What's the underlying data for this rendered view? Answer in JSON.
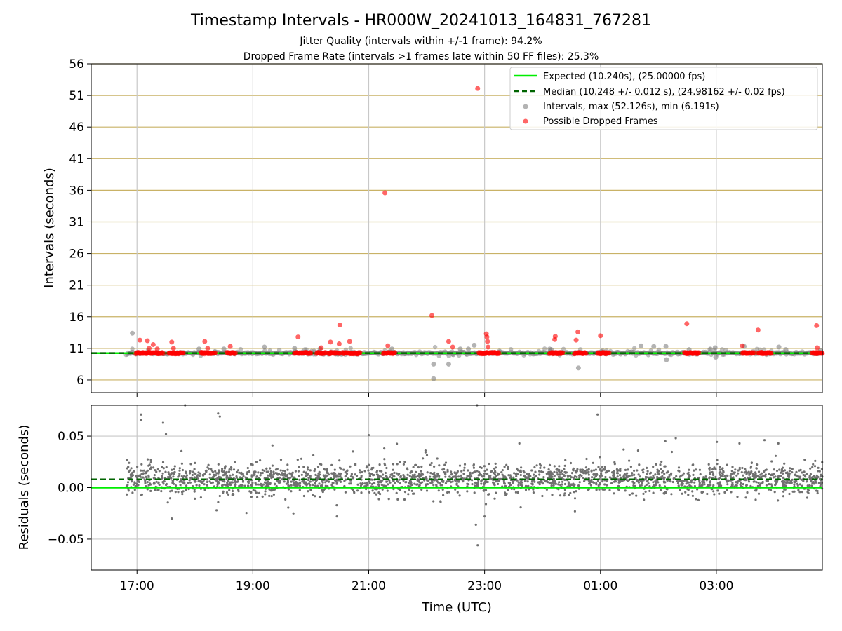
{
  "chart_data": {
    "title": "Timestamp Intervals - HR000W_20241013_164831_767281",
    "subtitle_lines": [
      "Jitter Quality (intervals within +/-1 frame): 94.2%",
      "Dropped Frame Rate (intervals >1 frames late within 50 FF files): 25.3%"
    ],
    "xlabel": "Time (UTC)",
    "x_tick_labels": [
      "17:00",
      "19:00",
      "21:00",
      "23:00",
      "01:00",
      "03:00"
    ],
    "x_tick_hours": [
      17,
      19,
      21,
      23,
      25,
      27
    ],
    "x_range_hours": [
      16.21,
      28.83
    ],
    "data_start_hour": 16.81,
    "data_end_hour": 28.83,
    "grid": true,
    "legend_position": "top-right",
    "top_panel": {
      "type": "scatter",
      "ylabel": "Intervals (seconds)",
      "ylim": [
        4,
        56
      ],
      "y_ticks": [
        6,
        11,
        16,
        21,
        26,
        31,
        36,
        41,
        46,
        51,
        56
      ],
      "expected_line": 10.24,
      "median_line": 10.248,
      "legend": [
        {
          "label": "Expected (10.240s), (25.00000 fps)",
          "color": "#00ee00",
          "style": "solid-line"
        },
        {
          "label": "Median (10.248 +/- 0.012 s), (24.98162 +/- 0.02 fps)",
          "color": "#006400",
          "style": "dashed-line"
        },
        {
          "label": "Intervals, max (52.126s), min (6.191s)",
          "color": "#808080",
          "style": "marker"
        },
        {
          "label": "Possible Dropped Frames",
          "color": "#ff0000",
          "style": "marker"
        }
      ],
      "gray_outliers": [
        [
          16.92,
          13.4
        ],
        [
          19.2,
          11.2
        ],
        [
          19.72,
          11.0
        ],
        [
          21.4,
          10.9
        ],
        [
          22.12,
          8.5
        ],
        [
          22.12,
          6.19
        ],
        [
          22.38,
          8.5
        ],
        [
          22.46,
          10.0
        ],
        [
          22.58,
          10.9
        ],
        [
          22.72,
          10.9
        ],
        [
          22.82,
          11.5
        ],
        [
          24.15,
          10.8
        ],
        [
          24.62,
          7.9
        ],
        [
          25.7,
          11.4
        ],
        [
          25.92,
          11.3
        ],
        [
          26.13,
          11.3
        ],
        [
          26.14,
          9.2
        ],
        [
          26.53,
          10.8
        ],
        [
          26.98,
          11.1
        ],
        [
          26.99,
          9.6
        ],
        [
          27.48,
          11.3
        ],
        [
          28.08,
          11.2
        ],
        [
          28.2,
          10.8
        ],
        [
          28.8,
          10.7
        ],
        [
          20.16,
          10.9
        ],
        [
          18.07,
          10.9
        ],
        [
          18.5,
          10.9
        ]
      ],
      "dropped_points": [
        [
          17.05,
          12.3
        ],
        [
          17.18,
          12.2
        ],
        [
          17.21,
          11.0
        ],
        [
          17.28,
          11.6
        ],
        [
          17.35,
          10.9
        ],
        [
          17.6,
          12.0
        ],
        [
          17.63,
          11.0
        ],
        [
          18.17,
          12.1
        ],
        [
          18.22,
          11.0
        ],
        [
          18.61,
          11.3
        ],
        [
          19.78,
          12.8
        ],
        [
          20.18,
          11.1
        ],
        [
          20.34,
          12.0
        ],
        [
          20.49,
          11.7
        ],
        [
          20.5,
          14.7
        ],
        [
          20.67,
          12.1
        ],
        [
          21.28,
          35.6
        ],
        [
          21.33,
          11.4
        ],
        [
          22.09,
          16.2
        ],
        [
          22.38,
          12.1
        ],
        [
          22.45,
          11.2
        ],
        [
          22.88,
          52.1
        ],
        [
          23.03,
          13.3
        ],
        [
          23.04,
          12.8
        ],
        [
          23.05,
          12.1
        ],
        [
          23.06,
          11.2
        ],
        [
          24.22,
          12.9
        ],
        [
          24.21,
          12.4
        ],
        [
          24.58,
          12.3
        ],
        [
          24.61,
          13.6
        ],
        [
          25.0,
          13.0
        ],
        [
          26.49,
          14.9
        ],
        [
          27.45,
          11.4
        ],
        [
          27.72,
          13.9
        ],
        [
          28.73,
          14.6
        ],
        [
          28.74,
          11.1
        ]
      ],
      "dropped_clusters": [
        [
          16.98,
          17.45
        ],
        [
          17.55,
          17.8
        ],
        [
          18.1,
          18.35
        ],
        [
          18.55,
          18.7
        ],
        [
          19.72,
          20.0
        ],
        [
          20.1,
          20.25
        ],
        [
          20.3,
          20.5
        ],
        [
          20.55,
          20.85
        ],
        [
          21.25,
          21.45
        ],
        [
          22.9,
          23.25
        ],
        [
          24.12,
          24.35
        ],
        [
          24.55,
          24.75
        ],
        [
          24.95,
          25.15
        ],
        [
          26.45,
          26.7
        ],
        [
          27.45,
          27.65
        ],
        [
          27.72,
          27.95
        ],
        [
          28.65,
          28.83
        ]
      ]
    },
    "bottom_panel": {
      "type": "scatter",
      "ylabel": "Residuals (seconds)",
      "ylim": [
        -0.08,
        0.08
      ],
      "y_ticks": [
        -0.05,
        0.0,
        0.05
      ],
      "y_tick_labels": [
        "−0.05",
        "0.00",
        "0.05"
      ],
      "expected_line": 0.0,
      "median_line": 0.008,
      "point_color": "#707070",
      "noise_sigma": 0.007,
      "outliers": [
        [
          17.07,
          0.071
        ],
        [
          17.07,
          0.066
        ],
        [
          17.45,
          0.063
        ],
        [
          17.5,
          0.052
        ],
        [
          17.83,
          0.08
        ],
        [
          18.4,
          0.072
        ],
        [
          18.43,
          0.069
        ],
        [
          21.0,
          0.051
        ],
        [
          22.87,
          0.08
        ],
        [
          22.85,
          -0.036
        ],
        [
          22.88,
          -0.056
        ],
        [
          24.95,
          0.071
        ],
        [
          23.6,
          0.043
        ],
        [
          23.0,
          -0.028
        ],
        [
          21.98,
          0.036
        ],
        [
          26.3,
          0.048
        ],
        [
          26.12,
          0.045
        ],
        [
          28.07,
          0.043
        ],
        [
          27.4,
          0.043
        ],
        [
          19.7,
          -0.025
        ],
        [
          17.6,
          -0.03
        ],
        [
          20.45,
          -0.028
        ],
        [
          25.4,
          0.037
        ],
        [
          25.65,
          0.036
        ]
      ]
    }
  }
}
